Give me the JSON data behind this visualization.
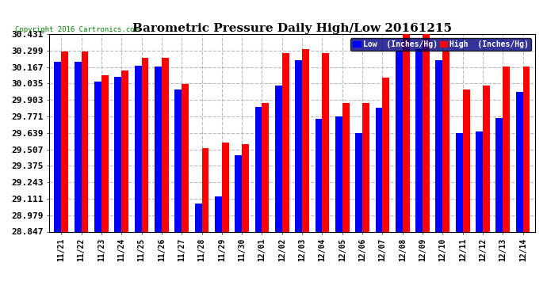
{
  "title": "Barometric Pressure Daily High/Low 20161215",
  "copyright": "Copyright 2016 Cartronics.com",
  "legend_low": "Low  (Inches/Hg)",
  "legend_high": "High  (Inches/Hg)",
  "dates": [
    "11/21",
    "11/22",
    "11/23",
    "11/24",
    "11/25",
    "11/26",
    "11/27",
    "11/28",
    "11/29",
    "11/30",
    "12/01",
    "12/02",
    "12/03",
    "12/04",
    "12/05",
    "12/06",
    "12/07",
    "12/08",
    "12/09",
    "12/10",
    "12/11",
    "12/12",
    "12/13",
    "12/14"
  ],
  "low_values": [
    30.21,
    30.21,
    30.05,
    30.09,
    30.18,
    30.17,
    29.99,
    29.07,
    29.13,
    29.46,
    29.85,
    30.02,
    30.22,
    29.75,
    29.77,
    29.64,
    29.84,
    30.3,
    30.31,
    30.22,
    29.64,
    29.65,
    29.76,
    29.97
  ],
  "high_values": [
    30.29,
    30.29,
    30.1,
    30.14,
    30.24,
    30.24,
    30.03,
    29.52,
    29.56,
    29.55,
    29.88,
    30.28,
    30.31,
    30.28,
    29.88,
    29.88,
    30.08,
    30.43,
    30.43,
    30.29,
    29.99,
    30.02,
    30.17,
    30.17
  ],
  "ymin": 28.847,
  "ymax": 30.431,
  "yticks": [
    28.847,
    28.979,
    29.111,
    29.243,
    29.375,
    29.507,
    29.639,
    29.771,
    29.903,
    30.035,
    30.167,
    30.299,
    30.431
  ],
  "low_color": "#0000FF",
  "high_color": "#FF0000",
  "background_color": "#FFFFFF",
  "bar_width": 0.35,
  "title_fontsize": 11,
  "copyright_fontsize": 6.5,
  "tick_fontsize": 7,
  "ytick_fontsize": 8,
  "legend_fontsize": 7,
  "grid_color": "#AAAAAA",
  "grid_alpha": 0.8
}
